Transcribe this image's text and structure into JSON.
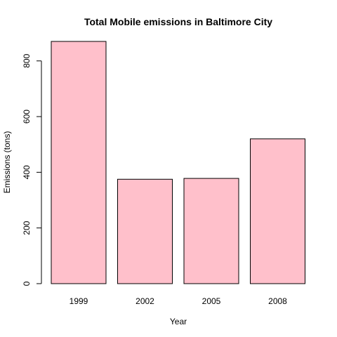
{
  "chart_data": {
    "type": "bar",
    "title": "Total Mobile emissions in Baltimore City",
    "xlabel": "Year",
    "ylabel": "Emissions (tons)",
    "categories": [
      "1999",
      "2002",
      "2005",
      "2008"
    ],
    "values": [
      870,
      375,
      378,
      520
    ],
    "ylim": [
      0,
      870
    ],
    "yticks": [
      0,
      200,
      400,
      600,
      800
    ],
    "grid": false,
    "legend": "none",
    "colors": {
      "bar_fill": "#FFC0CB",
      "bar_stroke": "#000000",
      "axis": "#000000"
    }
  }
}
